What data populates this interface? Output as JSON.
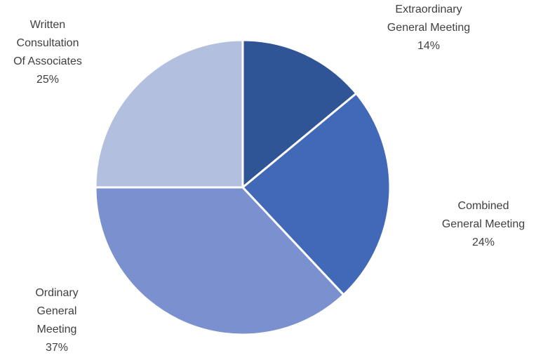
{
  "chart_data": {
    "type": "pie",
    "title": "",
    "slices": [
      {
        "label_lines": [
          "Extraordinary",
          "General Meeting"
        ],
        "percent_label": "14%",
        "value": 14,
        "color": "#2f5597"
      },
      {
        "label_lines": [
          "Combined",
          "General Meeting"
        ],
        "percent_label": "24%",
        "value": 24,
        "color": "#4169b8"
      },
      {
        "label_lines": [
          "Ordinary",
          "General",
          "Meeting"
        ],
        "percent_label": "37%",
        "value": 37,
        "color": "#7b91cf"
      },
      {
        "label_lines": [
          "Written",
          "Consultation",
          "Of Associates"
        ],
        "percent_label": "25%",
        "value": 25,
        "color": "#b3bfdf"
      }
    ],
    "start_angle_deg": 0,
    "direction": "clockwise",
    "legend": "none",
    "label_position": "outside"
  }
}
